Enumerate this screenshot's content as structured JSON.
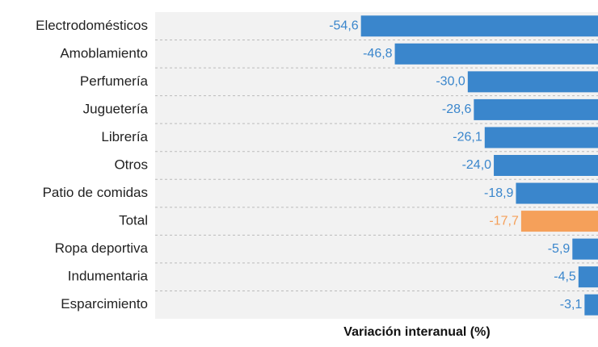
{
  "chart_data": {
    "type": "barh",
    "x_label": "Variación interanual (%)",
    "categories": [
      "Electrodomésticos",
      "Amoblamiento",
      "Perfumería",
      "Juguetería",
      "Librería",
      "Otros",
      "Patio de comidas",
      "Total",
      "Ropa deportiva",
      "Indumentaria",
      "Esparcimiento"
    ],
    "values": [
      -54.6,
      -46.8,
      -30.0,
      -28.6,
      -26.1,
      -24.0,
      -18.9,
      -17.7,
      -5.9,
      -4.5,
      -3.1
    ],
    "value_labels": [
      "-54,6",
      "-46,8",
      "-30,0",
      "-28,6",
      "-26,1",
      "-24,0",
      "-18,9",
      "-17,7",
      "-5,9",
      "-4,5",
      "-3,1"
    ],
    "colors": [
      "#3a86cc",
      "#3a86cc",
      "#3a86cc",
      "#3a86cc",
      "#3a86cc",
      "#3a86cc",
      "#3a86cc",
      "#f5a05a",
      "#3a86cc",
      "#3a86cc",
      "#3a86cc"
    ],
    "xlim": [
      -102,
      0
    ]
  }
}
